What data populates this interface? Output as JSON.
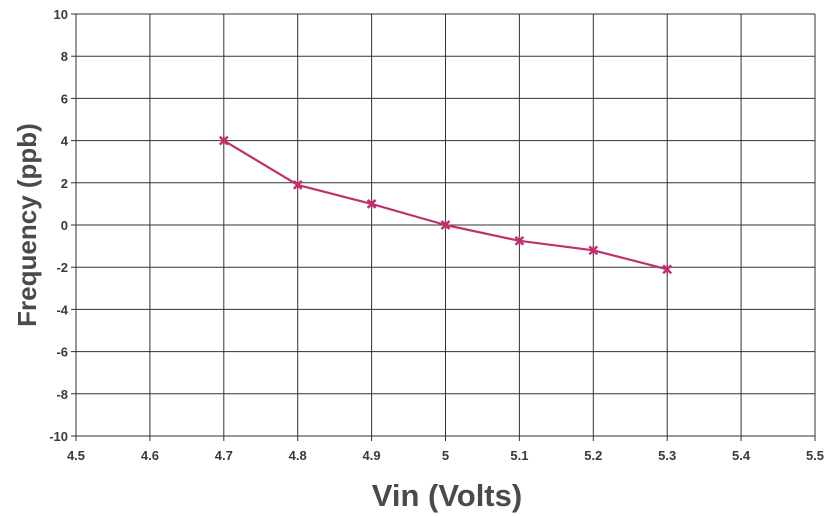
{
  "chart_data": {
    "type": "line",
    "title": "",
    "xlabel": "Vin (Volts)",
    "ylabel": "Frequency  (ppb)",
    "xlim": [
      4.5,
      5.5
    ],
    "ylim": [
      -10,
      10
    ],
    "xticks": [
      "4.5",
      "4.6",
      "4.7",
      "4.8",
      "4.9",
      "5",
      "5.1",
      "5.2",
      "5.3",
      "5.4",
      "5.5"
    ],
    "yticks": [
      "10",
      "8",
      "6",
      "4",
      "2",
      "0",
      "-2",
      "-4",
      "-6",
      "-8",
      "-10"
    ],
    "grid": true,
    "legend": "none",
    "series": [
      {
        "color": "#c0306e",
        "marker": "x",
        "x": [
          4.7,
          4.8,
          4.9,
          5.0,
          5.1,
          5.2,
          5.3
        ],
        "y": [
          4.0,
          1.9,
          1.0,
          0.0,
          -0.75,
          -1.2,
          -2.1
        ]
      }
    ]
  },
  "colors": {
    "grid": "#333333",
    "series": "#c0306e",
    "text": "#3a3a3a"
  }
}
